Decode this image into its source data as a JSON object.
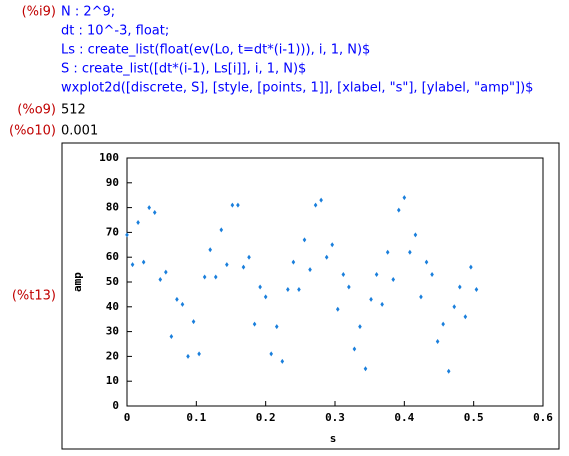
{
  "input": {
    "label": "(%i9)",
    "lines": [
      "N : 2^9;",
      "dt : 10^-3, float;",
      "Ls : create_list(float(ev(Lo, t=dt*(i-1))), i, 1, N)$",
      "S : create_list([dt*(i-1), Ls[i]], i, 1, N)$",
      "wxplot2d([discrete, S], [style, [points, 1]], [xlabel, \"s\"], [ylabel, \"amp\"])$"
    ]
  },
  "outputs": [
    {
      "label": "(%o9)",
      "text": "512"
    },
    {
      "label": "(%o10)",
      "text": "0.001"
    }
  ],
  "plot_label": "(%t13)",
  "chart_data": {
    "type": "scatter",
    "x_label": "s",
    "y_label": "amp",
    "color": "#1a7fdc",
    "x": [
      0,
      0.008,
      0.016,
      0.024,
      0.032,
      0.04,
      0.048,
      0.056,
      0.064,
      0.072,
      0.08,
      0.088,
      0.096,
      0.104,
      0.112,
      0.12,
      0.128,
      0.136,
      0.144,
      0.152,
      0.16,
      0.168,
      0.176,
      0.184,
      0.192,
      0.2,
      0.208,
      0.216,
      0.224,
      0.232,
      0.24,
      0.248,
      0.256,
      0.264,
      0.272,
      0.28,
      0.288,
      0.296,
      0.304,
      0.312,
      0.32,
      0.328,
      0.336,
      0.344,
      0.352,
      0.36,
      0.368,
      0.376,
      0.384,
      0.392,
      0.4,
      0.408,
      0.416,
      0.424,
      0.432,
      0.44,
      0.448,
      0.456,
      0.464,
      0.472,
      0.48,
      0.488,
      0.496,
      0.504
    ],
    "values": [
      69,
      57,
      74,
      58,
      80,
      78,
      51,
      54,
      28,
      43,
      41,
      20,
      34,
      21,
      52,
      63,
      52,
      71,
      57,
      81,
      81,
      56,
      60,
      33,
      48,
      44,
      21,
      32,
      18,
      47,
      58,
      47,
      67,
      55,
      81,
      83,
      60,
      65,
      39,
      53,
      48,
      23,
      32,
      15,
      43,
      53,
      41,
      62,
      51,
      79,
      84,
      62,
      69,
      44,
      58,
      53,
      26,
      33,
      14,
      40,
      48,
      36,
      56,
      47
    ],
    "xlim": [
      0,
      0.6
    ],
    "xticks": [
      0,
      0.1,
      0.2,
      0.3,
      0.4,
      0.5,
      0.6
    ],
    "ylim": [
      0,
      100
    ],
    "yticks": [
      0,
      10,
      20,
      30,
      40,
      50,
      60,
      70,
      80,
      90,
      100
    ]
  }
}
